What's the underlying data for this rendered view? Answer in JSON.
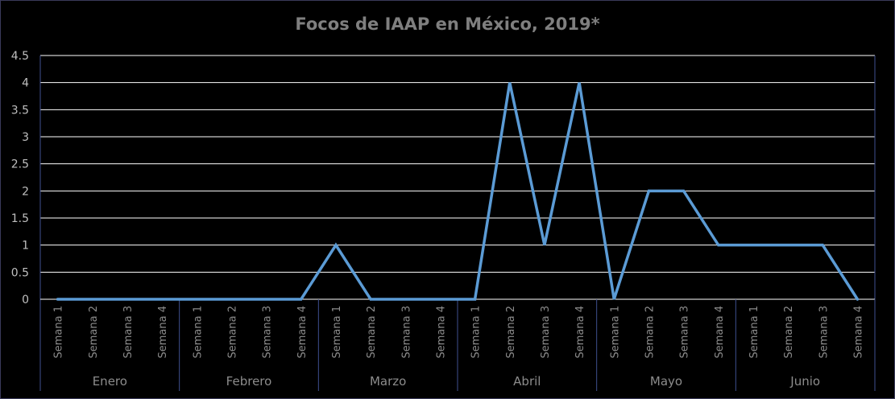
{
  "chart_data": {
    "type": "line",
    "title": "Focos de IAAP en México, 2019*",
    "xlabel": "",
    "ylabel": "",
    "ylim": [
      0,
      4.5
    ],
    "ytick_labels": [
      "0",
      "0.5",
      "1",
      "1.5",
      "2",
      "2.5",
      "3",
      "3.5",
      "4",
      "4.5"
    ],
    "groups": [
      {
        "label": "Enero",
        "categories": [
          "Semana 1",
          "Semana 2",
          "Semana 3",
          "Semana 4"
        ]
      },
      {
        "label": "Febrero",
        "categories": [
          "Semana 1",
          "Semana 2",
          "Semana 3",
          "Semana 4"
        ]
      },
      {
        "label": "Marzo",
        "categories": [
          "Semana 1",
          "Semana 2",
          "Semana 3",
          "Semana 4"
        ]
      },
      {
        "label": "Abril",
        "categories": [
          "Semana 1",
          "Semana 2",
          "Semana 3",
          "Semana 4"
        ]
      },
      {
        "label": "Mayo",
        "categories": [
          "Semana 1",
          "Semana 2",
          "Semana 3",
          "Semana 4"
        ]
      },
      {
        "label": "Junio",
        "categories": [
          "Semana 1",
          "Semana 2",
          "Semana 3",
          "Semana 4"
        ]
      }
    ],
    "values": [
      0,
      0,
      0,
      0,
      0,
      0,
      0,
      0,
      1,
      0,
      0,
      0,
      0,
      4,
      1,
      4,
      0,
      2,
      2,
      1,
      1,
      1,
      1,
      0
    ],
    "line_color": "#5b9bd5",
    "grid": true,
    "legend": "none"
  }
}
